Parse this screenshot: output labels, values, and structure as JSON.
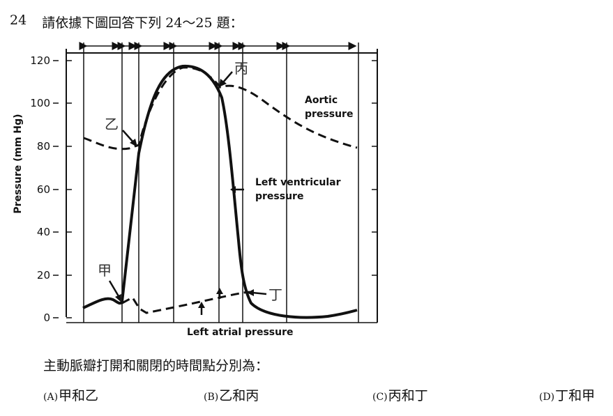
{
  "question": {
    "number": "24",
    "prompt": "請依據下圖回答下列 24～25 題："
  },
  "figure": {
    "ylabel": "Pressure (mm Hg)",
    "yticks": [
      "120",
      "100",
      "80",
      "60",
      "40",
      "20",
      "0"
    ],
    "labels": {
      "aortic_line1": "Aortic",
      "aortic_line2": "pressure",
      "lv_line1": "Left ventricular",
      "lv_line2": "pressure",
      "atrial": "Left atrial pressure"
    },
    "markers": {
      "jia": "甲",
      "yi": "乙",
      "bing": "丙",
      "ding": "丁"
    }
  },
  "stem": "主動脈瓣打開和關閉的時間點分別為：",
  "options": [
    {
      "label": "(A)",
      "text": "甲和乙"
    },
    {
      "label": "(B)",
      "text": "乙和丙"
    },
    {
      "label": "(C)",
      "text": "丙和丁"
    },
    {
      "label": "(D)",
      "text": "丁和甲"
    }
  ]
}
